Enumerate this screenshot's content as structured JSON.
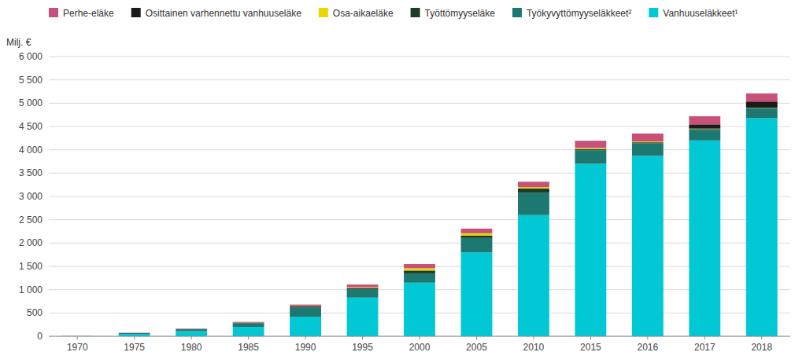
{
  "chart_data": {
    "type": "bar",
    "stacked": true,
    "y_label": "Milj. €",
    "categories": [
      "1970",
      "1975",
      "1980",
      "1985",
      "1990",
      "1995",
      "2000",
      "2005",
      "2010",
      "2015",
      "2016",
      "2017",
      "2018"
    ],
    "series": [
      {
        "name": "Vanhuuseläkkeet¹",
        "color": "#00C8D4",
        "values": [
          5,
          50,
          110,
          200,
          420,
          830,
          1150,
          1800,
          2600,
          3700,
          3870,
          4200,
          4680
        ]
      },
      {
        "name": "Työkyvyttömyyseläkkeet²",
        "color": "#1D7872",
        "values": [
          2,
          18,
          40,
          80,
          200,
          180,
          200,
          310,
          480,
          290,
          270,
          230,
          210
        ]
      },
      {
        "name": "Työttömyyseläke",
        "color": "#1C3C28",
        "values": [
          0,
          2,
          5,
          12,
          25,
          25,
          60,
          50,
          90,
          25,
          20,
          15,
          10
        ]
      },
      {
        "name": "Osa-aikaeläke",
        "color": "#E8D800",
        "values": [
          0,
          0,
          0,
          2,
          5,
          15,
          50,
          50,
          30,
          25,
          20,
          10,
          5
        ]
      },
      {
        "name": "Osittainen varhennettu vanhuuseläke",
        "color": "#1A1A1A",
        "values": [
          0,
          0,
          0,
          0,
          0,
          0,
          0,
          0,
          0,
          0,
          0,
          90,
          130
        ]
      },
      {
        "name": "Perhe-eläke",
        "color": "#C8507A",
        "values": [
          2,
          5,
          10,
          15,
          30,
          60,
          90,
          100,
          115,
          155,
          170,
          175,
          175
        ]
      }
    ],
    "ylim": [
      0,
      6000
    ],
    "yticks": [
      0,
      500,
      {
        "value": 1000,
        "label": "1 000"
      },
      {
        "value": 1500,
        "label": "1 500"
      },
      {
        "value": 2000,
        "label": "2 000"
      },
      {
        "value": 2500,
        "label": "2 500"
      },
      {
        "value": 3000,
        "label": "3 000"
      },
      {
        "value": 3500,
        "label": "3 500"
      },
      {
        "value": 4000,
        "label": "4 000"
      },
      {
        "value": 4500,
        "label": "4 500"
      },
      {
        "value": 5000,
        "label": "5 000"
      },
      {
        "value": 5500,
        "label": "5 500"
      },
      {
        "value": 6000,
        "label": "6 000"
      }
    ],
    "grid": true,
    "legend": "upper left"
  }
}
